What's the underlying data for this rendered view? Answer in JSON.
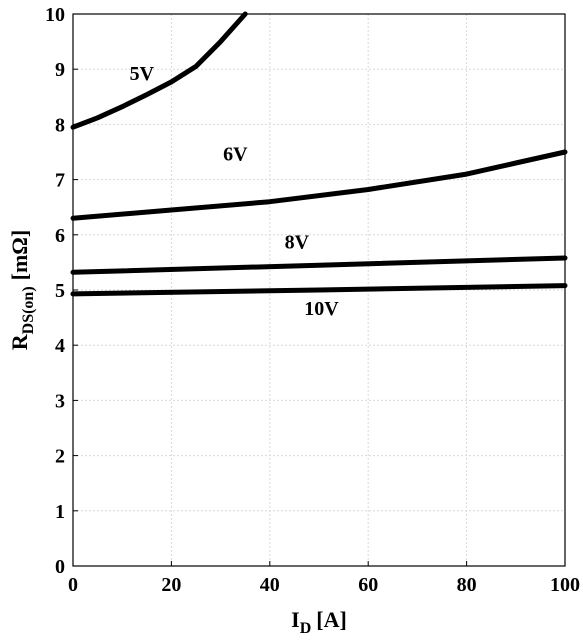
{
  "chart_data": {
    "type": "line",
    "title": "",
    "xlabel": {
      "main": "I",
      "sub": "D",
      "unit": "[A]"
    },
    "ylabel": {
      "main": "R",
      "sub": "DS(on)",
      "unit": "[mΩ]"
    },
    "xlim": [
      0,
      100
    ],
    "ylim": [
      0,
      10
    ],
    "xticks": [
      0,
      20,
      40,
      60,
      80,
      100
    ],
    "yticks": [
      0,
      1,
      2,
      3,
      4,
      5,
      6,
      7,
      8,
      9,
      10
    ],
    "grid": true,
    "series": [
      {
        "name": "5V",
        "x": [
          0,
          5,
          10,
          15,
          20,
          25,
          30,
          33,
          35
        ],
        "y": [
          7.95,
          8.12,
          8.32,
          8.54,
          8.77,
          9.05,
          9.5,
          9.8,
          10.0
        ]
      },
      {
        "name": "6V",
        "x": [
          0,
          20,
          40,
          60,
          80,
          90,
          100
        ],
        "y": [
          6.3,
          6.45,
          6.6,
          6.82,
          7.1,
          7.3,
          7.5
        ]
      },
      {
        "name": "8V",
        "x": [
          0,
          50,
          100
        ],
        "y": [
          5.32,
          5.45,
          5.58
        ]
      },
      {
        "name": "10V",
        "x": [
          0,
          50,
          100
        ],
        "y": [
          4.93,
          5.0,
          5.08
        ]
      }
    ],
    "annotations": [
      {
        "text": "5V",
        "x": 14,
        "y": 8.8
      },
      {
        "text": "6V",
        "x": 33,
        "y": 7.35
      },
      {
        "text": "8V",
        "x": 45.5,
        "y": 5.75
      },
      {
        "text": "10V",
        "x": 50.5,
        "y": 4.55
      }
    ]
  }
}
